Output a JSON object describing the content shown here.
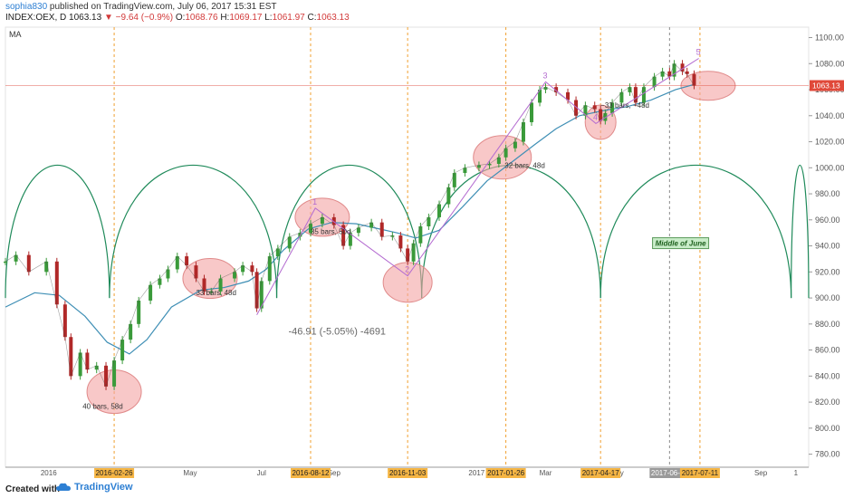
{
  "header": {
    "username": "sophia830",
    "published_text": " published on TradingView.com, July 06, 2017 15:31 EST",
    "symbol": "INDEX:OEX, D",
    "last": "1063.13",
    "change": "−9.64 (−0.9%)",
    "o_label": "O:",
    "o_val": "1068.76",
    "h_label": "H:",
    "h_val": "1069.17",
    "l_label": "L:",
    "l_val": "1061.97",
    "c_label": "C:",
    "c_val": "1063.13"
  },
  "indicator_label": "MA",
  "footer": {
    "created_with": "Created with",
    "brand": "TradingView"
  },
  "colors": {
    "up": "#3a9a3a",
    "down": "#b02828",
    "ma": "#3f8fb5",
    "cycle": "#1f8a5a",
    "vline": "#f0a030",
    "grey_vline": "#8c8c8c",
    "circle_fill": "#f4a3a3",
    "circle_stroke": "#e08a8a",
    "purple": "#b36ad0",
    "last_price": "#e0493a"
  },
  "chart_data": {
    "type": "line",
    "title": "INDEX:OEX, D",
    "ylim": [
      770,
      1108
    ],
    "y_ticks": [
      780,
      800,
      820,
      840,
      860,
      880,
      900,
      920,
      940,
      960,
      980,
      1000,
      1020,
      1040,
      1060,
      1080,
      1100
    ],
    "y_tick_labels": [
      "780.00",
      "800.00",
      "820.00",
      "840.00",
      "860.00",
      "880.00",
      "900.00",
      "920.00",
      "940.00",
      "960.00",
      "980.00",
      "1000.00",
      "1020.00",
      "1040.00",
      "1060.00",
      "1080.00",
      "1100.00"
    ],
    "x_range": [
      "2015-11-25",
      "2017-10-12"
    ],
    "x_ticks": [
      {
        "date": "2016-01-01",
        "label": "2016"
      },
      {
        "date": "2016-05-01",
        "label": "May"
      },
      {
        "date": "2016-07-01",
        "label": "Jul"
      },
      {
        "date": "2016-09-01",
        "label": "Sep"
      },
      {
        "date": "2017-01-01",
        "label": "2017"
      },
      {
        "date": "2017-03-01",
        "label": "Mar"
      },
      {
        "date": "2017-05-01",
        "label": "May"
      },
      {
        "date": "2017-09-01",
        "label": "Sep"
      },
      {
        "date": "2017-10-01",
        "label": "1"
      }
    ],
    "date_markers": [
      {
        "date": "2016-02-26",
        "label": "2016-02-26",
        "style": "orange"
      },
      {
        "date": "2016-08-12",
        "label": "2016-08-12",
        "style": "orange"
      },
      {
        "date": "2016-11-03",
        "label": "2016-11-03",
        "style": "orange"
      },
      {
        "date": "2017-01-26",
        "label": "2017-01-26",
        "style": "orange"
      },
      {
        "date": "2017-04-17",
        "label": "2017-04-17",
        "style": "orange"
      },
      {
        "date": "2017-06-15",
        "label": "2017-06-15",
        "style": "grey"
      },
      {
        "date": "2017-07-11",
        "label": "2017-07-11",
        "style": "orange"
      }
    ],
    "last_price": 1063.13,
    "last_price_label": "1063.13",
    "price_series": {
      "name": "",
      "x": [
        "2015-11-25",
        "2015-12-04",
        "2015-12-15",
        "2015-12-30",
        "2016-01-08",
        "2016-01-15",
        "2016-01-20",
        "2016-01-28",
        "2016-02-03",
        "2016-02-11",
        "2016-02-19",
        "2016-02-26",
        "2016-03-04",
        "2016-03-11",
        "2016-03-18",
        "2016-03-28",
        "2016-04-05",
        "2016-04-12",
        "2016-04-20",
        "2016-04-28",
        "2016-05-06",
        "2016-05-13",
        "2016-05-19",
        "2016-05-27",
        "2016-06-08",
        "2016-06-15",
        "2016-06-23",
        "2016-06-27",
        "2016-07-01",
        "2016-07-08",
        "2016-07-15",
        "2016-07-25",
        "2016-08-03",
        "2016-08-12",
        "2016-08-22",
        "2016-09-01",
        "2016-09-09",
        "2016-09-15",
        "2016-09-22",
        "2016-10-03",
        "2016-10-12",
        "2016-10-21",
        "2016-10-28",
        "2016-11-03",
        "2016-11-08",
        "2016-11-14",
        "2016-11-21",
        "2016-11-30",
        "2016-12-08",
        "2016-12-13",
        "2016-12-22",
        "2017-01-03",
        "2017-01-12",
        "2017-01-20",
        "2017-01-26",
        "2017-02-03",
        "2017-02-10",
        "2017-02-17",
        "2017-02-24",
        "2017-03-01",
        "2017-03-10",
        "2017-03-20",
        "2017-03-27",
        "2017-04-04",
        "2017-04-12",
        "2017-04-17",
        "2017-04-21",
        "2017-04-27",
        "2017-05-05",
        "2017-05-12",
        "2017-05-17",
        "2017-05-24",
        "2017-06-02",
        "2017-06-09",
        "2017-06-15",
        "2017-06-19",
        "2017-06-26",
        "2017-06-30",
        "2017-07-06"
      ],
      "values": [
        928,
        933,
        920,
        928,
        895,
        870,
        840,
        858,
        845,
        848,
        832,
        852,
        868,
        880,
        898,
        910,
        915,
        922,
        932,
        925,
        915,
        905,
        905,
        915,
        920,
        925,
        920,
        892,
        913,
        932,
        938,
        947,
        950,
        957,
        962,
        956,
        940,
        950,
        954,
        958,
        947,
        948,
        938,
        928,
        942,
        955,
        962,
        972,
        985,
        996,
        1000,
        1002,
        1003,
        1008,
        1015,
        1020,
        1035,
        1050,
        1060,
        1062,
        1058,
        1052,
        1040,
        1048,
        1045,
        1036,
        1042,
        1050,
        1058,
        1062,
        1050,
        1062,
        1070,
        1074,
        1070,
        1080,
        1074,
        1072,
        1063.13
      ]
    },
    "ma_series": {
      "name": "MA",
      "x": [
        "2015-11-25",
        "2015-12-20",
        "2016-01-10",
        "2016-02-01",
        "2016-02-20",
        "2016-03-10",
        "2016-03-25",
        "2016-04-15",
        "2016-05-10",
        "2016-05-30",
        "2016-06-20",
        "2016-07-05",
        "2016-07-20",
        "2016-08-10",
        "2016-08-30",
        "2016-09-20",
        "2016-10-10",
        "2016-10-25",
        "2016-11-10",
        "2016-11-30",
        "2016-12-20",
        "2017-01-10",
        "2017-02-01",
        "2017-02-20",
        "2017-03-10",
        "2017-03-30",
        "2017-04-20",
        "2017-05-10",
        "2017-05-30",
        "2017-06-20",
        "2017-07-06"
      ],
      "values": [
        893,
        904,
        902,
        886,
        866,
        857,
        868,
        893,
        906,
        908,
        913,
        922,
        937,
        953,
        958,
        957,
        953,
        950,
        946,
        952,
        970,
        990,
        1005,
        1018,
        1030,
        1040,
        1044,
        1047,
        1052,
        1060,
        1064
      ]
    },
    "cycles": [
      {
        "start": "2015-11-25",
        "end": "2016-02-22"
      },
      {
        "start": "2016-02-22",
        "end": "2016-07-14"
      },
      {
        "start": "2016-07-14",
        "end": "2016-11-15"
      },
      {
        "start": "2016-11-15",
        "end": "2017-04-17"
      },
      {
        "start": "2017-04-17",
        "end": "2017-09-27"
      },
      {
        "start": "2017-09-27",
        "end": "2017-10-12"
      }
    ],
    "cycle_low": 900,
    "cycle_peak": 968,
    "circles": [
      {
        "x": "2016-02-26",
        "y": 828,
        "rx": 30,
        "ry": 24
      },
      {
        "x": "2016-05-18",
        "y": 915,
        "rx": 30,
        "ry": 22
      },
      {
        "x": "2016-08-22",
        "y": 962,
        "rx": 30,
        "ry": 21
      },
      {
        "x": "2016-11-03",
        "y": 912,
        "rx": 27,
        "ry": 22
      },
      {
        "x": "2017-01-23",
        "y": 1008,
        "rx": 32,
        "ry": 24
      },
      {
        "x": "2017-04-17",
        "y": 1035,
        "rx": 17,
        "ry": 19
      },
      {
        "x": "2017-07-18",
        "y": 1063,
        "rx": 30,
        "ry": 16
      }
    ],
    "pivot_points": [
      {
        "x": "2016-06-27",
        "y": 887,
        "label": ""
      },
      {
        "x": "2016-08-16",
        "y": 969,
        "label": "1"
      },
      {
        "x": "2016-11-03",
        "y": 917,
        "label": "2"
      },
      {
        "x": "2017-03-01",
        "y": 1066,
        "label": "3"
      },
      {
        "x": "2017-04-13",
        "y": 1034,
        "label": "4"
      },
      {
        "x": "2017-07-10",
        "y": 1084,
        "label": "5"
      }
    ],
    "annotations": [
      {
        "x": "2016-01-30",
        "y": 815,
        "text": "40 bars, 58d"
      },
      {
        "x": "2016-05-06",
        "y": 902,
        "text": "33 bars, 48d"
      },
      {
        "x": "2016-08-12",
        "y": 949,
        "text": "35 bars, 50d"
      },
      {
        "x": "2017-01-25",
        "y": 1000,
        "text": "32 bars, 48d"
      },
      {
        "x": "2017-04-17",
        "y": 1046,
        "text": "−33 bars, −48d"
      },
      {
        "x": "2016-07-24",
        "y": 872,
        "text": "-46.91 (-5.05%) -4691"
      },
      {
        "x": "2017-06-02",
        "y": 940,
        "text": "Middle of June"
      }
    ]
  }
}
